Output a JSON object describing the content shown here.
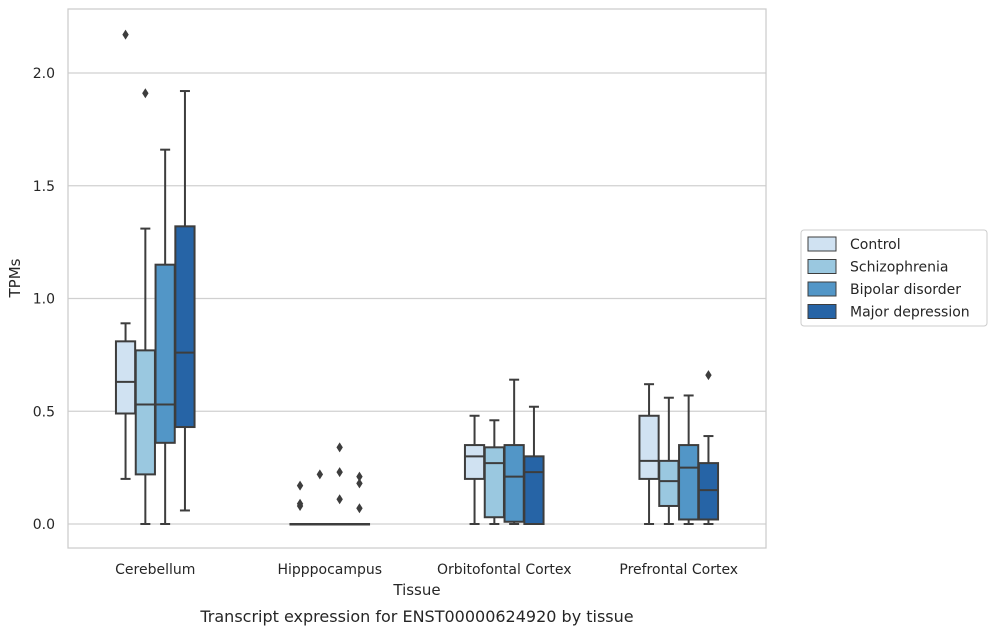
{
  "chart_data": {
    "type": "boxplot",
    "xlabel": "Tissue",
    "ylabel": "TPMs",
    "caption": "Transcript expression for ENST00000624920 by tissue",
    "ylim": [
      -0.1,
      2.38
    ],
    "yticks": [
      "0.0",
      "0.5",
      "1.0",
      "1.5",
      "2.0"
    ],
    "ytick_values": [
      0.0,
      0.5,
      1.0,
      1.5,
      2.0
    ],
    "grid": "horizontal",
    "legend_position": "right",
    "categories": [
      "Cerebellum",
      "Hipppocampus",
      "Orbitofontal Cortex",
      "Prefrontal Cortex"
    ],
    "series": [
      {
        "name": "Control",
        "color": "#d0e2f2",
        "boxes": [
          {
            "whislo": 0.2,
            "q1": 0.49,
            "med": 0.63,
            "q3": 0.81,
            "whishi": 0.89,
            "fliers": [
              2.17
            ]
          },
          {
            "whislo": 0.0,
            "q1": 0.0,
            "med": 0.0,
            "q3": 0.0,
            "whishi": 0.0,
            "fliers": [
              0.08,
              0.09,
              0.17
            ]
          },
          {
            "whislo": 0.0,
            "q1": 0.2,
            "med": 0.3,
            "q3": 0.35,
            "whishi": 0.48,
            "fliers": []
          },
          {
            "whislo": 0.0,
            "q1": 0.2,
            "med": 0.28,
            "q3": 0.48,
            "whishi": 0.62,
            "fliers": []
          }
        ]
      },
      {
        "name": "Schizophrenia",
        "color": "#9ac8e0",
        "boxes": [
          {
            "whislo": 0.0,
            "q1": 0.22,
            "med": 0.53,
            "q3": 0.77,
            "whishi": 1.31,
            "fliers": [
              1.91
            ]
          },
          {
            "whislo": 0.0,
            "q1": 0.0,
            "med": 0.0,
            "q3": 0.0,
            "whishi": 0.0,
            "fliers": [
              0.22
            ]
          },
          {
            "whislo": 0.0,
            "q1": 0.03,
            "med": 0.27,
            "q3": 0.34,
            "whishi": 0.46,
            "fliers": []
          },
          {
            "whislo": 0.0,
            "q1": 0.08,
            "med": 0.19,
            "q3": 0.28,
            "whishi": 0.56,
            "fliers": []
          }
        ]
      },
      {
        "name": "Bipolar disorder",
        "color": "#5296c7",
        "boxes": [
          {
            "whislo": 0.0,
            "q1": 0.36,
            "med": 0.53,
            "q3": 1.15,
            "whishi": 1.66,
            "fliers": []
          },
          {
            "whislo": 0.0,
            "q1": 0.0,
            "med": 0.0,
            "q3": 0.0,
            "whishi": 0.0,
            "fliers": [
              0.11,
              0.23,
              0.34
            ]
          },
          {
            "whislo": 0.0,
            "q1": 0.01,
            "med": 0.21,
            "q3": 0.35,
            "whishi": 0.64,
            "fliers": []
          },
          {
            "whislo": 0.0,
            "q1": 0.02,
            "med": 0.25,
            "q3": 0.35,
            "whishi": 0.57,
            "fliers": []
          }
        ]
      },
      {
        "name": "Major depression",
        "color": "#2664a6",
        "boxes": [
          {
            "whislo": 0.06,
            "q1": 0.43,
            "med": 0.76,
            "q3": 1.32,
            "whishi": 1.92,
            "fliers": []
          },
          {
            "whislo": 0.0,
            "q1": 0.0,
            "med": 0.0,
            "q3": 0.0,
            "whishi": 0.0,
            "fliers": [
              0.07,
              0.18,
              0.21
            ]
          },
          {
            "whislo": 0.0,
            "q1": 0.0,
            "med": 0.23,
            "q3": 0.3,
            "whishi": 0.52,
            "fliers": []
          },
          {
            "whislo": 0.0,
            "q1": 0.02,
            "med": 0.15,
            "q3": 0.27,
            "whishi": 0.39,
            "fliers": [
              0.66
            ]
          }
        ]
      }
    ]
  }
}
